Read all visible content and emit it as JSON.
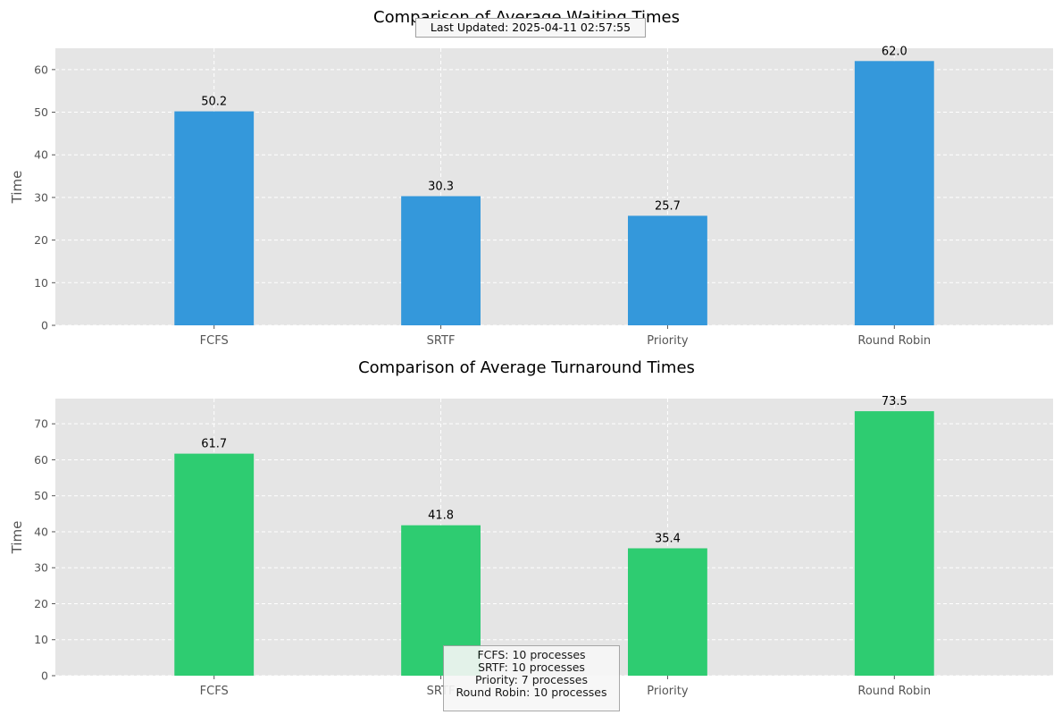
{
  "chart_data": [
    {
      "type": "bar",
      "title": "Comparison of Average Waiting Times",
      "categories": [
        "FCFS",
        "SRTF",
        "Priority",
        "Round Robin"
      ],
      "values": [
        50.2,
        30.3,
        25.7,
        62.0
      ],
      "data_labels": [
        "50.2",
        "30.3",
        "25.7",
        "62.0"
      ],
      "ylabel": "Time",
      "xlabel": "",
      "ylim": [
        0,
        65
      ],
      "yticks": [
        0,
        10,
        20,
        30,
        40,
        50,
        60
      ],
      "color": "#3498db",
      "grid": true
    },
    {
      "type": "bar",
      "title": "Comparison of Average Turnaround Times",
      "categories": [
        "FCFS",
        "SRTF",
        "Priority",
        "Round Robin"
      ],
      "values": [
        61.7,
        41.8,
        35.4,
        73.5
      ],
      "data_labels": [
        "61.7",
        "41.8",
        "35.4",
        "73.5"
      ],
      "ylabel": "Time",
      "xlabel": "",
      "ylim": [
        0,
        77
      ],
      "yticks": [
        0,
        10,
        20,
        30,
        40,
        50,
        60,
        70
      ],
      "color": "#2ecc71",
      "grid": true
    }
  ],
  "annotations": {
    "last_updated": "Last Updated: 2025-04-11 02:57:55",
    "process_counts": [
      "FCFS: 10 processes",
      "SRTF: 10 processes",
      "Priority: 7 processes",
      "Round Robin: 10 processes"
    ]
  }
}
